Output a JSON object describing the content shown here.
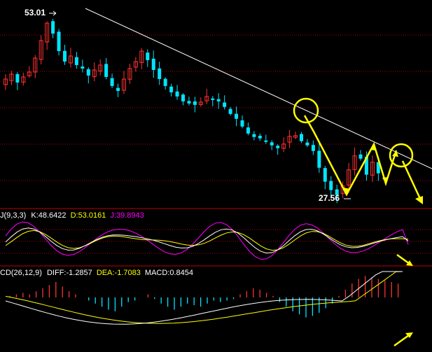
{
  "colors": {
    "background": "#000000",
    "up": "#ff3232",
    "down": "#00e5ff",
    "grid": "#aa0000",
    "separator": "#c00000",
    "trendline": "#ffffff",
    "annotation": "#ffff00",
    "arrow_blue": "#00ffff",
    "k_line": "#ffffff",
    "d_line": "#ffff00",
    "j_line": "#ff00ff",
    "diff_line": "#ffffff",
    "dea_line": "#ffff00",
    "text_white": "#ffffff",
    "text_yellow": "#ffff00",
    "text_magenta": "#ff00ff"
  },
  "price_panel": {
    "high_label": "53.01",
    "low_label": "27.56",
    "annotations": [
      "trendline",
      "circle",
      "circle",
      "arrow",
      "arrow"
    ]
  },
  "kdj_panel": {
    "title": "J(9,3,3)",
    "k_label": "K:48.6422",
    "d_label": "D:53.0161",
    "j_label": "J:39.8943"
  },
  "macd_panel": {
    "title": "CD(26,12,9)",
    "diff_label": "DIFF:-1.2857",
    "dea_label": "DEA:-1.7083",
    "macd_label": "MACD:0.8454"
  },
  "chart_data": [
    {
      "type": "candlestick",
      "title": "",
      "y_extremes": {
        "high": 53.01,
        "low": 27.56
      },
      "close_trend": [
        44.5,
        45.2,
        44.0,
        44.8,
        45.5,
        47.5,
        50.0,
        52.5,
        51.0,
        48.5,
        47.0,
        47.8,
        46.5,
        46.0,
        45.0,
        45.8,
        46.5,
        44.8,
        43.5,
        42.8,
        44.5,
        46.0,
        47.0,
        48.5,
        47.2,
        45.8,
        44.5,
        43.5,
        42.6,
        42.0,
        41.3,
        41.0,
        40.8,
        41.2,
        42.0,
        41.5,
        41.3,
        40.5,
        39.5,
        38.8,
        37.7,
        36.7,
        36.2,
        36.0,
        35.5,
        35.0,
        34.6,
        35.2,
        36.3,
        36.4,
        35.6,
        35.0,
        34.2,
        31.8,
        29.8,
        28.6,
        27.9,
        29.2,
        31.5,
        33.5,
        33.1,
        30.8,
        32.6,
        31.0
      ],
      "grid": true
    },
    {
      "type": "line",
      "title": "KDJ",
      "series": [
        {
          "name": "K",
          "last": 48.6422
        },
        {
          "name": "D",
          "last": 53.0161
        },
        {
          "name": "J",
          "last": 39.8943
        }
      ],
      "grid": true
    },
    {
      "type": "bar",
      "title": "MACD",
      "series": [
        {
          "name": "DIFF",
          "last": -1.2857
        },
        {
          "name": "DEA",
          "last": -1.7083
        },
        {
          "name": "MACD",
          "last": 0.8454,
          "values": [
            0.1,
            0.2,
            0.3,
            0.2,
            0.4,
            0.6,
            0.8,
            1.0,
            0.7,
            0.4,
            0.2,
            0.0,
            -0.2,
            -0.4,
            -0.6,
            -0.8,
            -0.9,
            -0.6,
            -0.3,
            -0.2,
            0.0,
            0.2,
            -0.1,
            -0.4,
            -0.6,
            -0.8,
            -0.6,
            -0.4,
            -0.5,
            -0.6,
            -0.4,
            -0.2,
            -0.3,
            -0.2,
            -0.1,
            0.2,
            0.4,
            0.6,
            0.5,
            0.3,
            0.1,
            -0.3,
            -0.6,
            -0.9,
            -1.1,
            -1.3,
            -1.2,
            -1.0,
            -0.7,
            -0.4,
            0.1,
            0.5,
            0.9,
            1.2,
            1.4,
            1.3,
            1.2,
            1.1,
            1.0,
            0.9
          ]
        }
      ],
      "grid": false
    }
  ]
}
